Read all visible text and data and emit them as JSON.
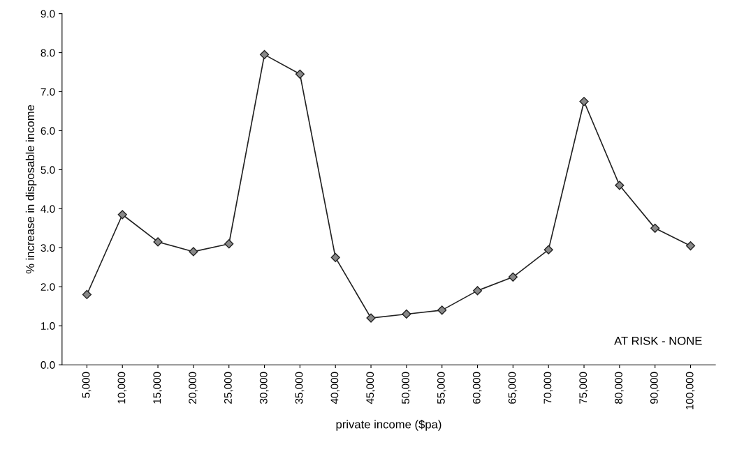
{
  "chart_data": {
    "type": "line",
    "xlabel": "private income ($pa)",
    "ylabel": "% increase in disposable income",
    "categories": [
      "5,000",
      "10,000",
      "15,000",
      "20,000",
      "25,000",
      "30,000",
      "35,000",
      "40,000",
      "45,000",
      "50,000",
      "55,000",
      "60,000",
      "65,000",
      "70,000",
      "75,000",
      "80,000",
      "90,000",
      "100,000"
    ],
    "series": [
      {
        "color": "#222222",
        "values": [
          1.8,
          3.85,
          3.15,
          2.9,
          3.1,
          7.95,
          7.45,
          2.75,
          1.2,
          1.3,
          1.4,
          1.9,
          2.25,
          2.95,
          6.75,
          4.6,
          3.5,
          3.05
        ]
      }
    ],
    "ylim": [
      0,
      9
    ],
    "yticks": [
      {
        "value": 0,
        "label": "0.0"
      },
      {
        "value": 1,
        "label": "1.0"
      },
      {
        "value": 2,
        "label": "2.0"
      },
      {
        "value": 3,
        "label": "3.0"
      },
      {
        "value": 4,
        "label": "4.0"
      },
      {
        "value": 5,
        "label": "5.0"
      },
      {
        "value": 6,
        "label": "6.0"
      },
      {
        "value": 7,
        "label": "7.0"
      },
      {
        "value": 8,
        "label": "8.0"
      },
      {
        "value": 9,
        "label": "9.0"
      }
    ],
    "marker": "diamond",
    "line_style": "solid",
    "grid": false,
    "legend": false,
    "annotations": [
      "AT RISK - NONE"
    ]
  }
}
